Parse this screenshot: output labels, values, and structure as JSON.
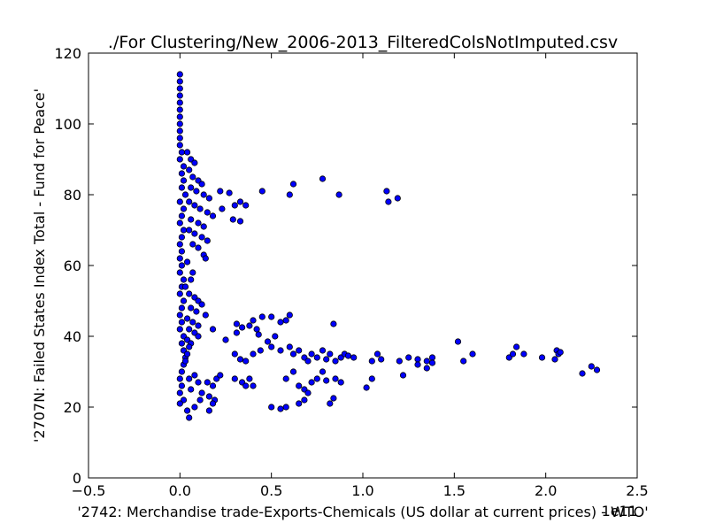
{
  "chart_data": {
    "type": "scatter",
    "title": "./For Clustering/New_2006-2013_FilteredColsNotImputed.csv",
    "xlabel": "'2742: Merchandise trade-Exports-Chemicals (US dollar at current prices) - WTO'",
    "ylabel": "'2707N: Failed States Index Total - Fund for Peace'",
    "x_offset_label": "1e11",
    "xlim": [
      -0.5,
      2.5
    ],
    "ylim": [
      0,
      120
    ],
    "x_ticks": [
      -0.5,
      0.0,
      0.5,
      1.0,
      1.5,
      2.0,
      2.5
    ],
    "x_tick_labels": [
      "−0.5",
      "0.0",
      "0.5",
      "1.0",
      "1.5",
      "2.0",
      "2.5"
    ],
    "y_ticks": [
      0,
      20,
      40,
      60,
      80,
      100,
      120
    ],
    "y_tick_labels": [
      "0",
      "20",
      "40",
      "60",
      "80",
      "100",
      "120"
    ],
    "marker_color": "#0000ff",
    "marker_edge_color": "#000000",
    "grid": false,
    "x_unit_scale": "x values in units of 1e11 US dollars",
    "points": [
      [
        0.0,
        114
      ],
      [
        0.0,
        112
      ],
      [
        0.0,
        110
      ],
      [
        0.0,
        108
      ],
      [
        0.0,
        106
      ],
      [
        0.0,
        104
      ],
      [
        0.0,
        102
      ],
      [
        0.0,
        100
      ],
      [
        0.0,
        98
      ],
      [
        0.0,
        96
      ],
      [
        0.0,
        94
      ],
      [
        0.01,
        92
      ],
      [
        0.0,
        90
      ],
      [
        0.02,
        88
      ],
      [
        0.01,
        86
      ],
      [
        0.02,
        84
      ],
      [
        0.01,
        82
      ],
      [
        0.03,
        80
      ],
      [
        0.0,
        78
      ],
      [
        0.02,
        76
      ],
      [
        0.01,
        74
      ],
      [
        0.0,
        72
      ],
      [
        0.02,
        70
      ],
      [
        0.01,
        68
      ],
      [
        0.0,
        66
      ],
      [
        0.01,
        64
      ],
      [
        0.0,
        62
      ],
      [
        0.01,
        60
      ],
      [
        0.0,
        58
      ],
      [
        0.02,
        56
      ],
      [
        0.01,
        54
      ],
      [
        0.0,
        52
      ],
      [
        0.02,
        50
      ],
      [
        0.01,
        48
      ],
      [
        0.0,
        46
      ],
      [
        0.01,
        44
      ],
      [
        0.0,
        42
      ],
      [
        0.02,
        40
      ],
      [
        0.01,
        38
      ],
      [
        0.02,
        36
      ],
      [
        0.03,
        34
      ],
      [
        0.02,
        32
      ],
      [
        0.01,
        30
      ],
      [
        0.0,
        28
      ],
      [
        0.01,
        26
      ],
      [
        0.0,
        24
      ],
      [
        0.02,
        22
      ],
      [
        0.0,
        21
      ],
      [
        0.04,
        19
      ],
      [
        0.05,
        17
      ],
      [
        0.04,
        92
      ],
      [
        0.06,
        90
      ],
      [
        0.08,
        89
      ],
      [
        0.05,
        87
      ],
      [
        0.07,
        85
      ],
      [
        0.1,
        84
      ],
      [
        0.12,
        83
      ],
      [
        0.06,
        82
      ],
      [
        0.09,
        81
      ],
      [
        0.13,
        80
      ],
      [
        0.16,
        79
      ],
      [
        0.05,
        78
      ],
      [
        0.08,
        77
      ],
      [
        0.11,
        76
      ],
      [
        0.15,
        75
      ],
      [
        0.18,
        74
      ],
      [
        0.06,
        73
      ],
      [
        0.1,
        72
      ],
      [
        0.13,
        71
      ],
      [
        0.05,
        70
      ],
      [
        0.08,
        69
      ],
      [
        0.12,
        68
      ],
      [
        0.15,
        67
      ],
      [
        0.07,
        66
      ],
      [
        0.1,
        65
      ],
      [
        0.13,
        63
      ],
      [
        0.14,
        62
      ],
      [
        0.04,
        61
      ],
      [
        0.07,
        58
      ],
      [
        0.06,
        56
      ],
      [
        0.03,
        54
      ],
      [
        0.05,
        52
      ],
      [
        0.08,
        51
      ],
      [
        0.1,
        50
      ],
      [
        0.12,
        49
      ],
      [
        0.06,
        48
      ],
      [
        0.09,
        47
      ],
      [
        0.14,
        46
      ],
      [
        0.04,
        45
      ],
      [
        0.07,
        44
      ],
      [
        0.1,
        43
      ],
      [
        0.05,
        42
      ],
      [
        0.08,
        41
      ],
      [
        0.18,
        42
      ],
      [
        0.1,
        40
      ],
      [
        0.04,
        39
      ],
      [
        0.06,
        38
      ],
      [
        0.05,
        37
      ],
      [
        0.04,
        35
      ],
      [
        0.03,
        33
      ],
      [
        0.08,
        29
      ],
      [
        0.05,
        28
      ],
      [
        0.1,
        27
      ],
      [
        0.15,
        27
      ],
      [
        0.18,
        26
      ],
      [
        0.2,
        28
      ],
      [
        0.22,
        29
      ],
      [
        0.06,
        25
      ],
      [
        0.12,
        24
      ],
      [
        0.16,
        23
      ],
      [
        0.19,
        22
      ],
      [
        0.11,
        22
      ],
      [
        0.18,
        21
      ],
      [
        0.16,
        19
      ],
      [
        0.08,
        20
      ],
      [
        0.22,
        81
      ],
      [
        0.27,
        80.5
      ],
      [
        0.3,
        77
      ],
      [
        0.33,
        78
      ],
      [
        0.36,
        77
      ],
      [
        0.29,
        73
      ],
      [
        0.33,
        72.5
      ],
      [
        0.23,
        76
      ],
      [
        0.45,
        81
      ],
      [
        0.6,
        80
      ],
      [
        0.62,
        83
      ],
      [
        0.78,
        84.5
      ],
      [
        0.87,
        80
      ],
      [
        1.13,
        81
      ],
      [
        1.14,
        78
      ],
      [
        1.19,
        79
      ],
      [
        0.25,
        39
      ],
      [
        0.31,
        43.5
      ],
      [
        0.31,
        41
      ],
      [
        0.34,
        42.5
      ],
      [
        0.38,
        43
      ],
      [
        0.4,
        44.5
      ],
      [
        0.42,
        42
      ],
      [
        0.43,
        40.5
      ],
      [
        0.45,
        45.5
      ],
      [
        0.5,
        45.5
      ],
      [
        0.55,
        44
      ],
      [
        0.58,
        44.5
      ],
      [
        0.6,
        46
      ],
      [
        0.48,
        38.5
      ],
      [
        0.52,
        40
      ],
      [
        0.84,
        43.5
      ],
      [
        0.3,
        35
      ],
      [
        0.33,
        33.5
      ],
      [
        0.36,
        33
      ],
      [
        0.4,
        35
      ],
      [
        0.44,
        36
      ],
      [
        0.5,
        37
      ],
      [
        0.55,
        36
      ],
      [
        0.6,
        37
      ],
      [
        0.62,
        35
      ],
      [
        0.65,
        36
      ],
      [
        0.68,
        34
      ],
      [
        0.7,
        33
      ],
      [
        0.72,
        35
      ],
      [
        0.75,
        34
      ],
      [
        0.78,
        36
      ],
      [
        0.8,
        33.5
      ],
      [
        0.82,
        35
      ],
      [
        0.85,
        33
      ],
      [
        0.88,
        34
      ],
      [
        0.9,
        35
      ],
      [
        0.92,
        34.5
      ],
      [
        0.95,
        34
      ],
      [
        1.05,
        33
      ],
      [
        1.08,
        35
      ],
      [
        1.1,
        33.5
      ],
      [
        1.2,
        33
      ],
      [
        1.25,
        34
      ],
      [
        1.3,
        33.5
      ],
      [
        1.35,
        33
      ],
      [
        1.38,
        34
      ],
      [
        1.52,
        38.5
      ],
      [
        1.55,
        33
      ],
      [
        1.6,
        35
      ],
      [
        1.8,
        34
      ],
      [
        1.82,
        35
      ],
      [
        1.84,
        37
      ],
      [
        1.88,
        35
      ],
      [
        1.98,
        34
      ],
      [
        2.05,
        33.5
      ],
      [
        2.06,
        36
      ],
      [
        2.07,
        35
      ],
      [
        2.08,
        35.5
      ],
      [
        2.2,
        29.5
      ],
      [
        2.25,
        31.5
      ],
      [
        2.28,
        30.5
      ],
      [
        1.22,
        29
      ],
      [
        1.3,
        32
      ],
      [
        1.35,
        31
      ],
      [
        1.38,
        32.5
      ],
      [
        0.3,
        28
      ],
      [
        0.34,
        27
      ],
      [
        0.36,
        26
      ],
      [
        0.38,
        28
      ],
      [
        0.4,
        26
      ],
      [
        0.58,
        28
      ],
      [
        0.62,
        30
      ],
      [
        0.65,
        26
      ],
      [
        0.68,
        25
      ],
      [
        0.7,
        24
      ],
      [
        0.72,
        27
      ],
      [
        0.75,
        28
      ],
      [
        0.78,
        30
      ],
      [
        0.8,
        27.5
      ],
      [
        0.85,
        28
      ],
      [
        0.88,
        27
      ],
      [
        1.02,
        25.5
      ],
      [
        1.05,
        28
      ],
      [
        0.5,
        20
      ],
      [
        0.55,
        19.5
      ],
      [
        0.58,
        20
      ],
      [
        0.65,
        21
      ],
      [
        0.68,
        22
      ],
      [
        0.84,
        22.5
      ],
      [
        0.82,
        21
      ]
    ]
  }
}
